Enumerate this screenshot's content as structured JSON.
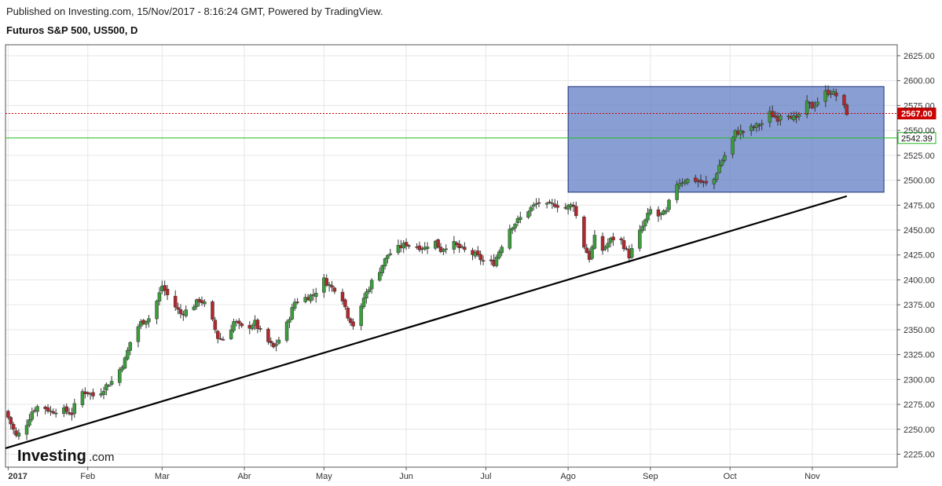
{
  "header": {
    "published": "Published on Investing.com, 15/Nov/2017 - 8:16:24 GMT, Powered by TradingView.",
    "title": "Futuros S&P 500, US500, D"
  },
  "logo": {
    "brand": "Investing",
    "suffix": ".com"
  },
  "chart_data": {
    "type": "candlestick",
    "title": "Futuros S&P 500, US500, D",
    "x_ticks": [
      {
        "label": "2017",
        "day": 0,
        "bold": true
      },
      {
        "label": "Feb",
        "day": 30
      },
      {
        "label": "Mar",
        "day": 58
      },
      {
        "label": "Abr",
        "day": 89
      },
      {
        "label": "May",
        "day": 119
      },
      {
        "label": "Jun",
        "day": 150
      },
      {
        "label": "Jul",
        "day": 180
      },
      {
        "label": "Ago",
        "day": 211
      },
      {
        "label": "Sep",
        "day": 242
      },
      {
        "label": "Oct",
        "day": 272
      },
      {
        "label": "Nov",
        "day": 303
      }
    ],
    "y_ticks": [
      "2625.00",
      "2600.00",
      "2575.00",
      "2550.00",
      "2525.00",
      "2500.00",
      "2475.00",
      "2450.00",
      "2425.00",
      "2400.00",
      "2375.00",
      "2350.00",
      "2325.00",
      "2300.00",
      "2275.00",
      "2250.00",
      "2225.00"
    ],
    "ylim": [
      2212,
      2636
    ],
    "xlim_days": [
      -1,
      335
    ],
    "grid": true,
    "price_lines": [
      {
        "label": "2567.00",
        "value": 2567,
        "color": "#cc0000",
        "style": "dashed"
      },
      {
        "label": "2542.39",
        "value": 2542.39,
        "color": "#22bb22",
        "style": "solid"
      }
    ],
    "rectangle": {
      "day_start": 211,
      "day_end": 330,
      "price_low": 2488,
      "price_high": 2594,
      "color": "#5b78c2"
    },
    "trendline": {
      "day_start": -1,
      "price_start": 2231,
      "day_end": 316,
      "price_end": 2484,
      "color": "#000000"
    },
    "close_anchors": [
      [
        0,
        2262
      ],
      [
        3,
        2243
      ],
      [
        6,
        2250
      ],
      [
        9,
        2268
      ],
      [
        12,
        2275
      ],
      [
        16,
        2268
      ],
      [
        20,
        2270
      ],
      [
        24,
        2266
      ],
      [
        27,
        2288
      ],
      [
        30,
        2287
      ],
      [
        33,
        2282
      ],
      [
        37,
        2294
      ],
      [
        40,
        2300
      ],
      [
        44,
        2320
      ],
      [
        47,
        2346
      ],
      [
        50,
        2357
      ],
      [
        54,
        2363
      ],
      [
        58,
        2394
      ],
      [
        61,
        2380
      ],
      [
        65,
        2366
      ],
      [
        69,
        2372
      ],
      [
        72,
        2380
      ],
      [
        75,
        2374
      ],
      [
        79,
        2342
      ],
      [
        82,
        2340
      ],
      [
        85,
        2358
      ],
      [
        89,
        2350
      ],
      [
        93,
        2357
      ],
      [
        96,
        2343
      ],
      [
        100,
        2332
      ],
      [
        104,
        2348
      ],
      [
        108,
        2378
      ],
      [
        112,
        2382
      ],
      [
        115,
        2385
      ],
      [
        119,
        2400
      ],
      [
        122,
        2392
      ],
      [
        125,
        2390
      ],
      [
        128,
        2364
      ],
      [
        131,
        2350
      ],
      [
        134,
        2382
      ],
      [
        137,
        2398
      ],
      [
        140,
        2410
      ],
      [
        143,
        2425
      ],
      [
        147,
        2432
      ],
      [
        150,
        2436
      ],
      [
        153,
        2434
      ],
      [
        157,
        2432
      ],
      [
        160,
        2442
      ],
      [
        163,
        2430
      ],
      [
        167,
        2438
      ],
      [
        170,
        2432
      ],
      [
        173,
        2428
      ],
      [
        176,
        2425
      ],
      [
        180,
        2417
      ],
      [
        183,
        2417
      ],
      [
        186,
        2435
      ],
      [
        189,
        2452
      ],
      [
        193,
        2462
      ],
      [
        196,
        2470
      ],
      [
        200,
        2478
      ],
      [
        203,
        2474
      ],
      [
        206,
        2476
      ],
      [
        210,
        2472
      ],
      [
        213,
        2476
      ],
      [
        216,
        2440
      ],
      [
        219,
        2422
      ],
      [
        222,
        2452
      ],
      [
        224,
        2430
      ],
      [
        227,
        2440
      ],
      [
        230,
        2444
      ],
      [
        234,
        2424
      ],
      [
        238,
        2448
      ],
      [
        242,
        2470
      ],
      [
        245,
        2464
      ],
      [
        248,
        2468
      ],
      [
        251,
        2496
      ],
      [
        255,
        2500
      ],
      [
        258,
        2501
      ],
      [
        261,
        2498
      ],
      [
        265,
        2494
      ],
      [
        268,
        2515
      ],
      [
        271,
        2530
      ],
      [
        274,
        2548
      ],
      [
        277,
        2549
      ],
      [
        281,
        2553
      ],
      [
        284,
        2557
      ],
      [
        287,
        2567
      ],
      [
        290,
        2562
      ],
      [
        292,
        2571
      ],
      [
        295,
        2565
      ],
      [
        297,
        2560
      ],
      [
        300,
        2578
      ],
      [
        303,
        2574
      ],
      [
        306,
        2582
      ],
      [
        308,
        2588
      ],
      [
        310,
        2589
      ],
      [
        313,
        2583
      ],
      [
        316,
        2568
      ]
    ]
  }
}
